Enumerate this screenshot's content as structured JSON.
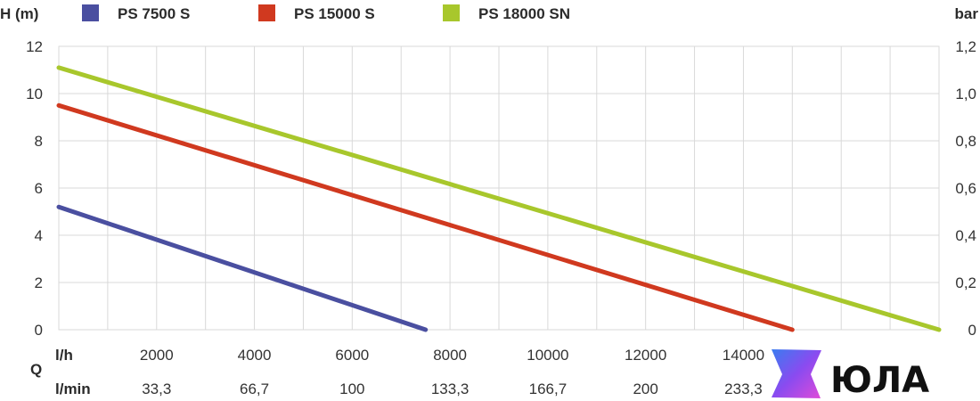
{
  "chart_data": {
    "type": "line",
    "ylabel": "H (m)",
    "y2label": "bar",
    "ylim": [
      0,
      12
    ],
    "y_ticks": [
      "0",
      "2",
      "4",
      "6",
      "8",
      "10",
      "12"
    ],
    "y2_ticks": [
      "0",
      "0,2",
      "0,4",
      "0,6",
      "0,8",
      "1,0",
      "1,2"
    ],
    "xlim": [
      0,
      18000
    ],
    "x_row1_label": "l/h",
    "x_row1_ticks": [
      "2000",
      "4000",
      "6000",
      "8000",
      "10000",
      "12000",
      "14000"
    ],
    "x_row2_label": "l/min",
    "x_row2_ticks": [
      "33,3",
      "66,7",
      "100",
      "133,3",
      "166,7",
      "200",
      "233,3"
    ],
    "x_quantity_label": "Q",
    "grid": true,
    "legend_position": "top",
    "series": [
      {
        "name": "PS 7500 S",
        "color": "#4a4fa0",
        "x": [
          0,
          7500
        ],
        "y": [
          5.2,
          0
        ]
      },
      {
        "name": "PS 15000 S",
        "color": "#d0391f",
        "x": [
          0,
          15000
        ],
        "y": [
          9.5,
          0
        ]
      },
      {
        "name": "PS 18000 SN",
        "color": "#a8c72c",
        "x": [
          0,
          18000
        ],
        "y": [
          11.1,
          0
        ]
      }
    ]
  },
  "brand": {
    "text": "ЮЛА",
    "gradient_colors": [
      "#3a7cf0",
      "#8a4bf0",
      "#e04bd8"
    ]
  }
}
